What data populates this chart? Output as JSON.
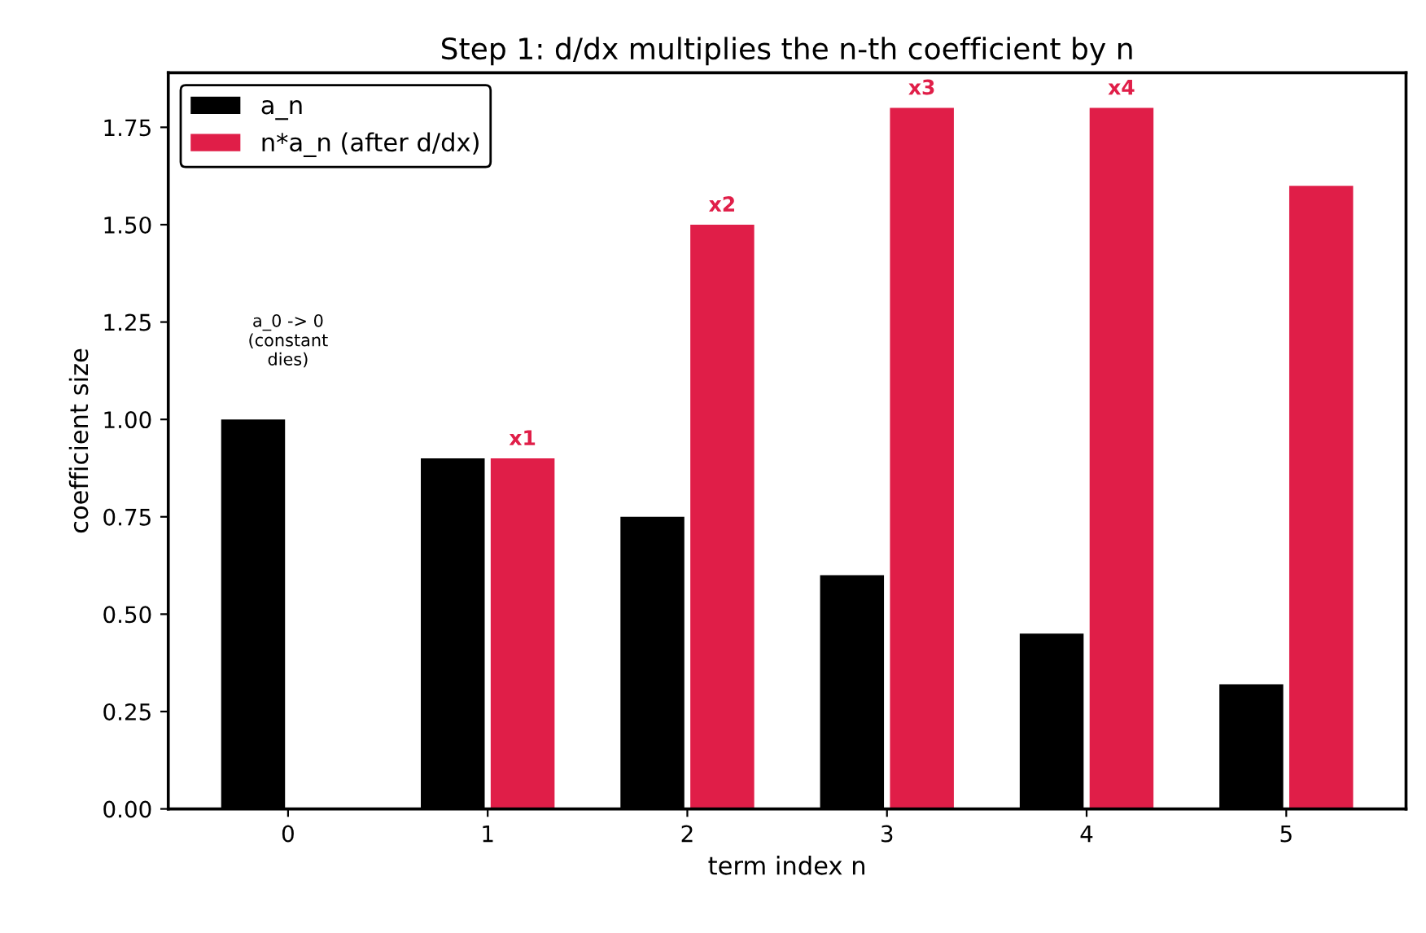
{
  "chart_data": {
    "type": "bar",
    "title": "Step 1: d/dx multiplies the n-th coefficient by n",
    "xlabel": "term index n",
    "ylabel": "coefficient size",
    "categories": [
      "0",
      "1",
      "2",
      "3",
      "4",
      "5"
    ],
    "series": [
      {
        "name": "a_n",
        "color": "#000000",
        "values": [
          1.0,
          0.9,
          0.75,
          0.6,
          0.45,
          0.32
        ]
      },
      {
        "name": "n*a_n (after d/dx)",
        "color": "#e01e48",
        "values": [
          0,
          0.9,
          1.5,
          1.8,
          1.8,
          1.6
        ],
        "value_labels": [
          null,
          "x1",
          "x2",
          "x3",
          "x4",
          null
        ]
      }
    ],
    "annotations": [
      "a_0 -> 0\n(constant\ndies)"
    ],
    "ylim": [
      0,
      1.89
    ],
    "yticks": [
      {
        "value": 0,
        "label": "0.00"
      },
      0.25,
      {
        "value": 0.5,
        "label": "0.50"
      },
      0.75,
      {
        "value": 1,
        "label": "1.00"
      },
      1.25,
      {
        "value": 1.5,
        "label": "1.50"
      },
      1.75
    ],
    "legend": "top left",
    "grid": false
  }
}
